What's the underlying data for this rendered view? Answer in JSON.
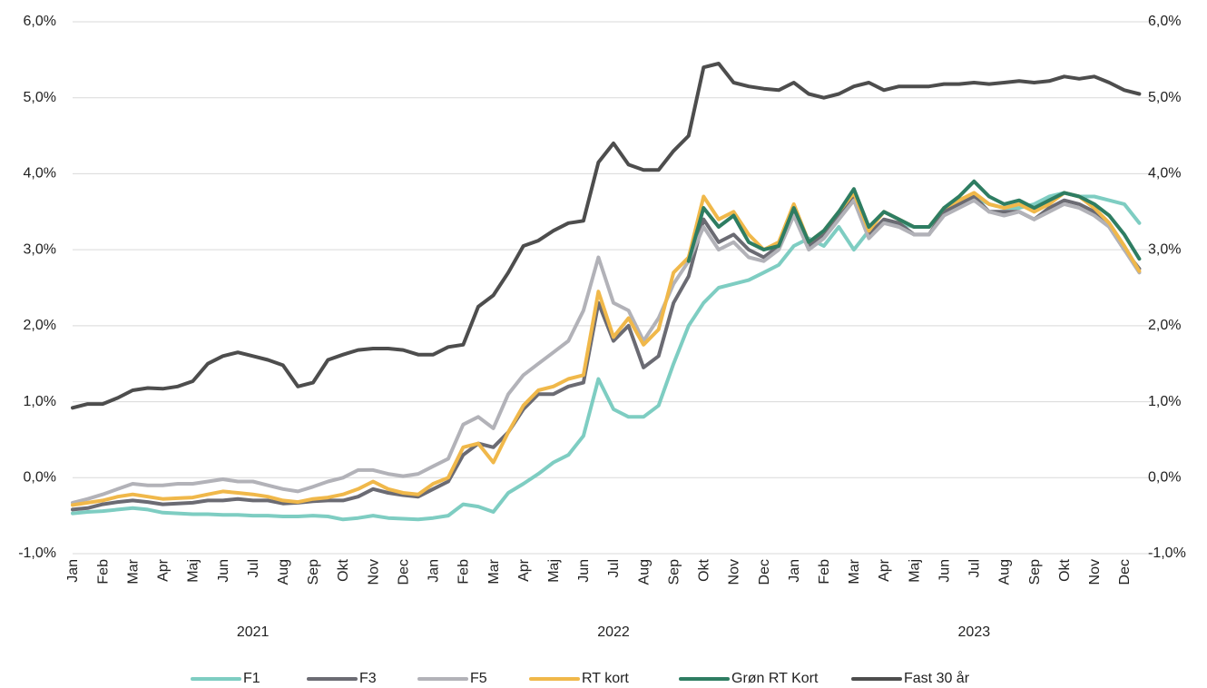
{
  "chart_data": {
    "type": "line",
    "categories": [
      "Jan",
      null,
      "Feb",
      null,
      "Mar",
      null,
      "Apr",
      null,
      "Maj",
      null,
      "Jun",
      null,
      "Jul",
      null,
      "Aug",
      null,
      "Sep",
      null,
      "Okt",
      null,
      "Nov",
      null,
      "Dec",
      null,
      "Jan",
      null,
      "Feb",
      null,
      "Mar",
      null,
      "Apr",
      null,
      "Maj",
      null,
      "Jun",
      null,
      "Jul",
      null,
      "Aug",
      null,
      "Sep",
      null,
      "Okt",
      null,
      "Nov",
      null,
      "Dec",
      null,
      "Jan",
      null,
      "Feb",
      null,
      "Mar",
      null,
      "Apr",
      null,
      "Maj",
      null,
      "Jun",
      null,
      "Jul",
      null,
      "Aug",
      null,
      "Sep",
      null,
      "Okt",
      null,
      "Nov",
      null,
      "Dec",
      null
    ],
    "year_labels": [
      "2021",
      "2022",
      "2023"
    ],
    "ylim": [
      -1,
      6
    ],
    "yticks": [
      {
        "value": -1,
        "label": "-1,0%"
      },
      {
        "value": 0,
        "label": "0,0%"
      },
      {
        "value": 1,
        "label": "1,0%"
      },
      {
        "value": 2,
        "label": "2,0%"
      },
      {
        "value": 3,
        "label": "3,0%"
      },
      {
        "value": 4,
        "label": "4,0%"
      },
      {
        "value": 5,
        "label": "5,0%"
      },
      {
        "value": 6,
        "label": "6,0%"
      }
    ],
    "grid": true,
    "legend": "bottom",
    "series": [
      {
        "name": "F1",
        "color": "#7ecdc2",
        "values": [
          -0.47,
          -0.45,
          -0.44,
          -0.42,
          -0.4,
          -0.42,
          -0.46,
          -0.47,
          -0.48,
          -0.48,
          -0.49,
          -0.49,
          -0.5,
          -0.5,
          -0.51,
          -0.51,
          -0.5,
          -0.51,
          -0.55,
          -0.53,
          -0.5,
          -0.53,
          -0.54,
          -0.55,
          -0.53,
          -0.5,
          -0.35,
          -0.38,
          -0.45,
          -0.2,
          -0.08,
          0.05,
          0.2,
          0.3,
          0.55,
          1.3,
          0.9,
          0.8,
          0.8,
          0.95,
          1.5,
          2.0,
          2.3,
          2.5,
          2.55,
          2.6,
          2.7,
          2.8,
          3.05,
          3.15,
          3.05,
          3.3,
          3.0,
          3.25,
          3.35,
          3.35,
          3.3,
          3.3,
          3.5,
          3.6,
          3.7,
          3.6,
          3.55,
          3.55,
          3.6,
          3.7,
          3.75,
          3.7,
          3.7,
          3.65,
          3.6,
          3.35
        ]
      },
      {
        "name": "F3",
        "color": "#6b6b73",
        "values": [
          -0.42,
          -0.4,
          -0.35,
          -0.32,
          -0.3,
          -0.32,
          -0.35,
          -0.34,
          -0.33,
          -0.3,
          -0.3,
          -0.28,
          -0.3,
          -0.3,
          -0.34,
          -0.33,
          -0.31,
          -0.3,
          -0.3,
          -0.25,
          -0.15,
          -0.2,
          -0.23,
          -0.25,
          -0.15,
          -0.05,
          0.3,
          0.45,
          0.4,
          0.6,
          0.9,
          1.1,
          1.1,
          1.2,
          1.25,
          2.3,
          1.8,
          2.0,
          1.45,
          1.6,
          2.3,
          2.65,
          3.4,
          3.1,
          3.2,
          3.0,
          2.9,
          3.05,
          3.5,
          3.05,
          3.2,
          3.45,
          3.7,
          3.2,
          3.4,
          3.35,
          3.2,
          3.2,
          3.5,
          3.6,
          3.7,
          3.5,
          3.5,
          3.5,
          3.4,
          3.55,
          3.65,
          3.6,
          3.5,
          3.3,
          3.0,
          2.75
        ]
      },
      {
        "name": "F5",
        "color": "#b2b2b8",
        "values": [
          -0.33,
          -0.28,
          -0.22,
          -0.15,
          -0.08,
          -0.1,
          -0.1,
          -0.08,
          -0.08,
          -0.05,
          -0.02,
          -0.05,
          -0.05,
          -0.1,
          -0.15,
          -0.18,
          -0.12,
          -0.05,
          0.0,
          0.1,
          0.1,
          0.05,
          0.02,
          0.05,
          0.15,
          0.25,
          0.7,
          0.8,
          0.65,
          1.1,
          1.35,
          1.5,
          1.65,
          1.8,
          2.2,
          2.9,
          2.3,
          2.2,
          1.8,
          2.1,
          2.55,
          2.85,
          3.3,
          3.0,
          3.1,
          2.9,
          2.85,
          3.0,
          3.45,
          3.0,
          3.15,
          3.4,
          3.65,
          3.15,
          3.35,
          3.3,
          3.2,
          3.2,
          3.45,
          3.55,
          3.65,
          3.5,
          3.45,
          3.5,
          3.4,
          3.5,
          3.6,
          3.55,
          3.45,
          3.3,
          3.0,
          2.7
        ]
      },
      {
        "name": "RT kort",
        "color": "#f0b84a",
        "values": [
          -0.36,
          -0.33,
          -0.3,
          -0.25,
          -0.22,
          -0.25,
          -0.28,
          -0.27,
          -0.26,
          -0.22,
          -0.18,
          -0.2,
          -0.22,
          -0.25,
          -0.3,
          -0.32,
          -0.28,
          -0.26,
          -0.22,
          -0.15,
          -0.05,
          -0.15,
          -0.2,
          -0.22,
          -0.08,
          0.0,
          0.4,
          0.45,
          0.2,
          0.6,
          0.95,
          1.15,
          1.2,
          1.3,
          1.35,
          2.45,
          1.85,
          2.1,
          1.75,
          1.95,
          2.7,
          2.9,
          3.7,
          3.4,
          3.5,
          3.2,
          3.0,
          3.1,
          3.6,
          3.1,
          3.25,
          3.5,
          3.75,
          3.25,
          3.5,
          3.4,
          3.3,
          3.3,
          3.55,
          3.65,
          3.75,
          3.6,
          3.55,
          3.6,
          3.5,
          3.6,
          3.75,
          3.7,
          3.55,
          3.35,
          3.05,
          2.72
        ]
      },
      {
        "name": "Grøn RT Kort",
        "color": "#2e7d62",
        "values": [
          null,
          null,
          null,
          null,
          null,
          null,
          null,
          null,
          null,
          null,
          null,
          null,
          null,
          null,
          null,
          null,
          null,
          null,
          null,
          null,
          null,
          null,
          null,
          null,
          null,
          null,
          null,
          null,
          null,
          null,
          null,
          null,
          null,
          null,
          null,
          null,
          null,
          null,
          null,
          null,
          null,
          2.85,
          3.55,
          3.3,
          3.45,
          3.1,
          3.0,
          3.05,
          3.55,
          3.1,
          3.25,
          3.5,
          3.8,
          3.3,
          3.5,
          3.4,
          3.3,
          3.3,
          3.55,
          3.7,
          3.9,
          3.7,
          3.6,
          3.65,
          3.55,
          3.65,
          3.75,
          3.7,
          3.6,
          3.45,
          3.2,
          2.88
        ]
      },
      {
        "name": "Fast 30 år",
        "color": "#4d4d4d",
        "values": [
          0.92,
          0.97,
          0.97,
          1.05,
          1.15,
          1.18,
          1.17,
          1.2,
          1.27,
          1.5,
          1.6,
          1.65,
          1.6,
          1.55,
          1.48,
          1.2,
          1.25,
          1.55,
          1.62,
          1.68,
          1.7,
          1.7,
          1.68,
          1.62,
          1.62,
          1.72,
          1.75,
          2.25,
          2.4,
          2.7,
          3.05,
          3.12,
          3.25,
          3.35,
          3.38,
          4.15,
          4.4,
          4.12,
          4.05,
          4.05,
          4.3,
          4.5,
          5.4,
          5.45,
          5.2,
          5.15,
          5.12,
          5.1,
          5.2,
          5.05,
          5.0,
          5.05,
          5.15,
          5.2,
          5.1,
          5.15,
          5.15,
          5.15,
          5.18,
          5.18,
          5.2,
          5.18,
          5.2,
          5.22,
          5.2,
          5.22,
          5.28,
          5.25,
          5.28,
          5.2,
          5.1,
          5.05
        ]
      }
    ]
  }
}
